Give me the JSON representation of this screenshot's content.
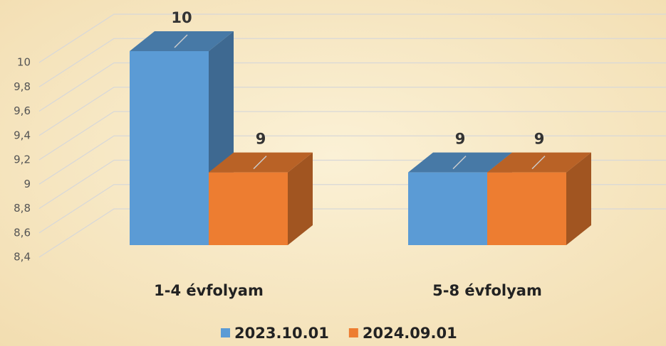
{
  "chart_data": {
    "type": "bar3d",
    "categories": [
      "1-4 évfolyam",
      "5-8 évfolyam"
    ],
    "series": [
      {
        "name": "2023.10.01",
        "color": "#5b9bd5",
        "values": [
          10,
          9
        ]
      },
      {
        "name": "2024.09.01",
        "color": "#ed7d31",
        "values": [
          9,
          9
        ]
      }
    ],
    "ylim": [
      8.4,
      10
    ],
    "yticks": [
      {
        "value": 8.4,
        "label": "8,4"
      },
      {
        "value": 8.6,
        "label": "8,6"
      },
      {
        "value": 8.8,
        "label": "8,8"
      },
      9,
      {
        "value": 9.2,
        "label": "9,2"
      },
      {
        "value": 9.4,
        "label": "9,4"
      },
      {
        "value": 9.6,
        "label": "9,6"
      },
      {
        "value": 9.8,
        "label": "9,8"
      },
      10
    ],
    "grid": true,
    "legend": "bottom"
  }
}
